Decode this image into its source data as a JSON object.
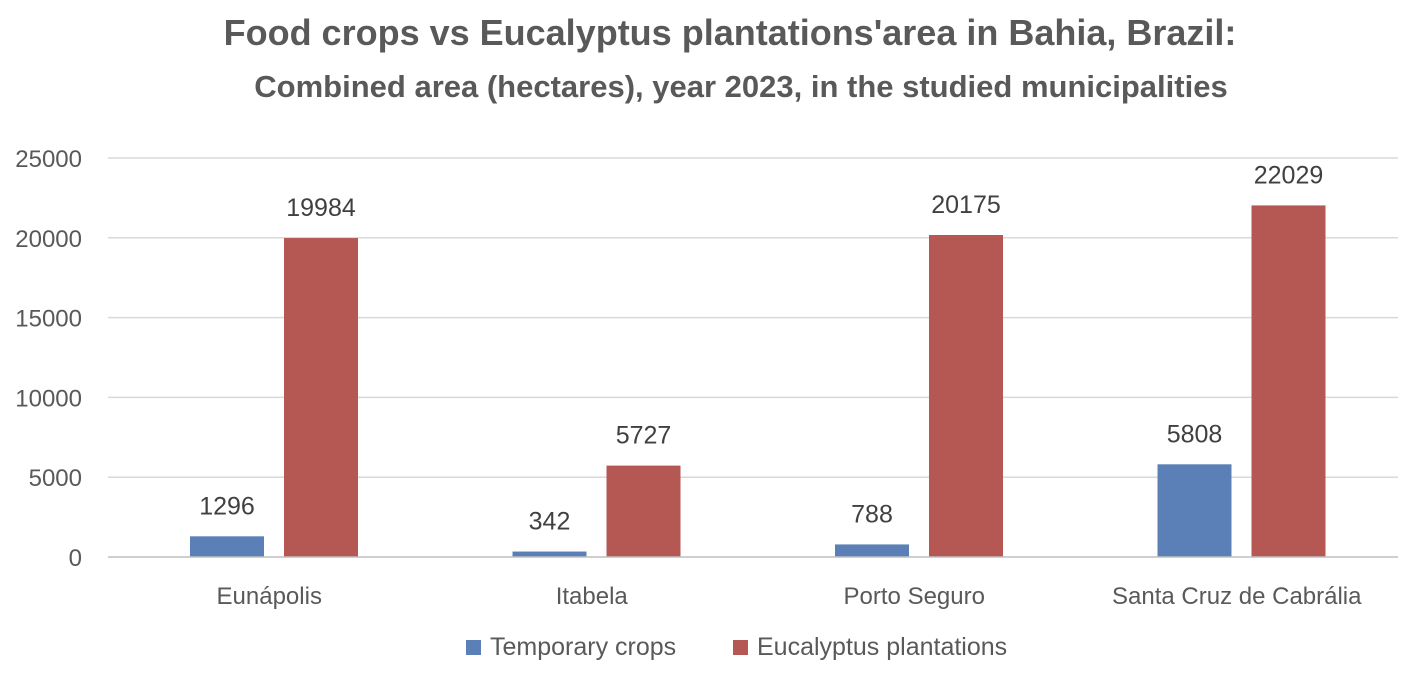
{
  "chart_data": {
    "type": "bar",
    "title": "Food crops vs Eucalyptus plantations'area in Bahia, Brazil:",
    "subtitle": "Combined area (hectares), year 2023, in the studied municipalities",
    "xlabel": "",
    "ylabel": "",
    "categories": [
      "Eunápolis",
      "Itabela",
      "Porto Seguro",
      "Santa Cruz de Cabrália"
    ],
    "series": [
      {
        "name": "Temporary crops",
        "values": [
          1296,
          342,
          788,
          5808
        ],
        "color": "#5B80B8"
      },
      {
        "name": "Eucalyptus plantations",
        "values": [
          19984,
          5727,
          20175,
          22029
        ],
        "color": "#B55752"
      }
    ],
    "ylim": [
      0,
      25000
    ],
    "yticks": [
      "0",
      "5000",
      "10000",
      "15000",
      "20000",
      "25000"
    ],
    "grid": true,
    "legend": "bottom",
    "gridline_color": "#D9D9D9",
    "axis_color": "#BFBFBF"
  }
}
